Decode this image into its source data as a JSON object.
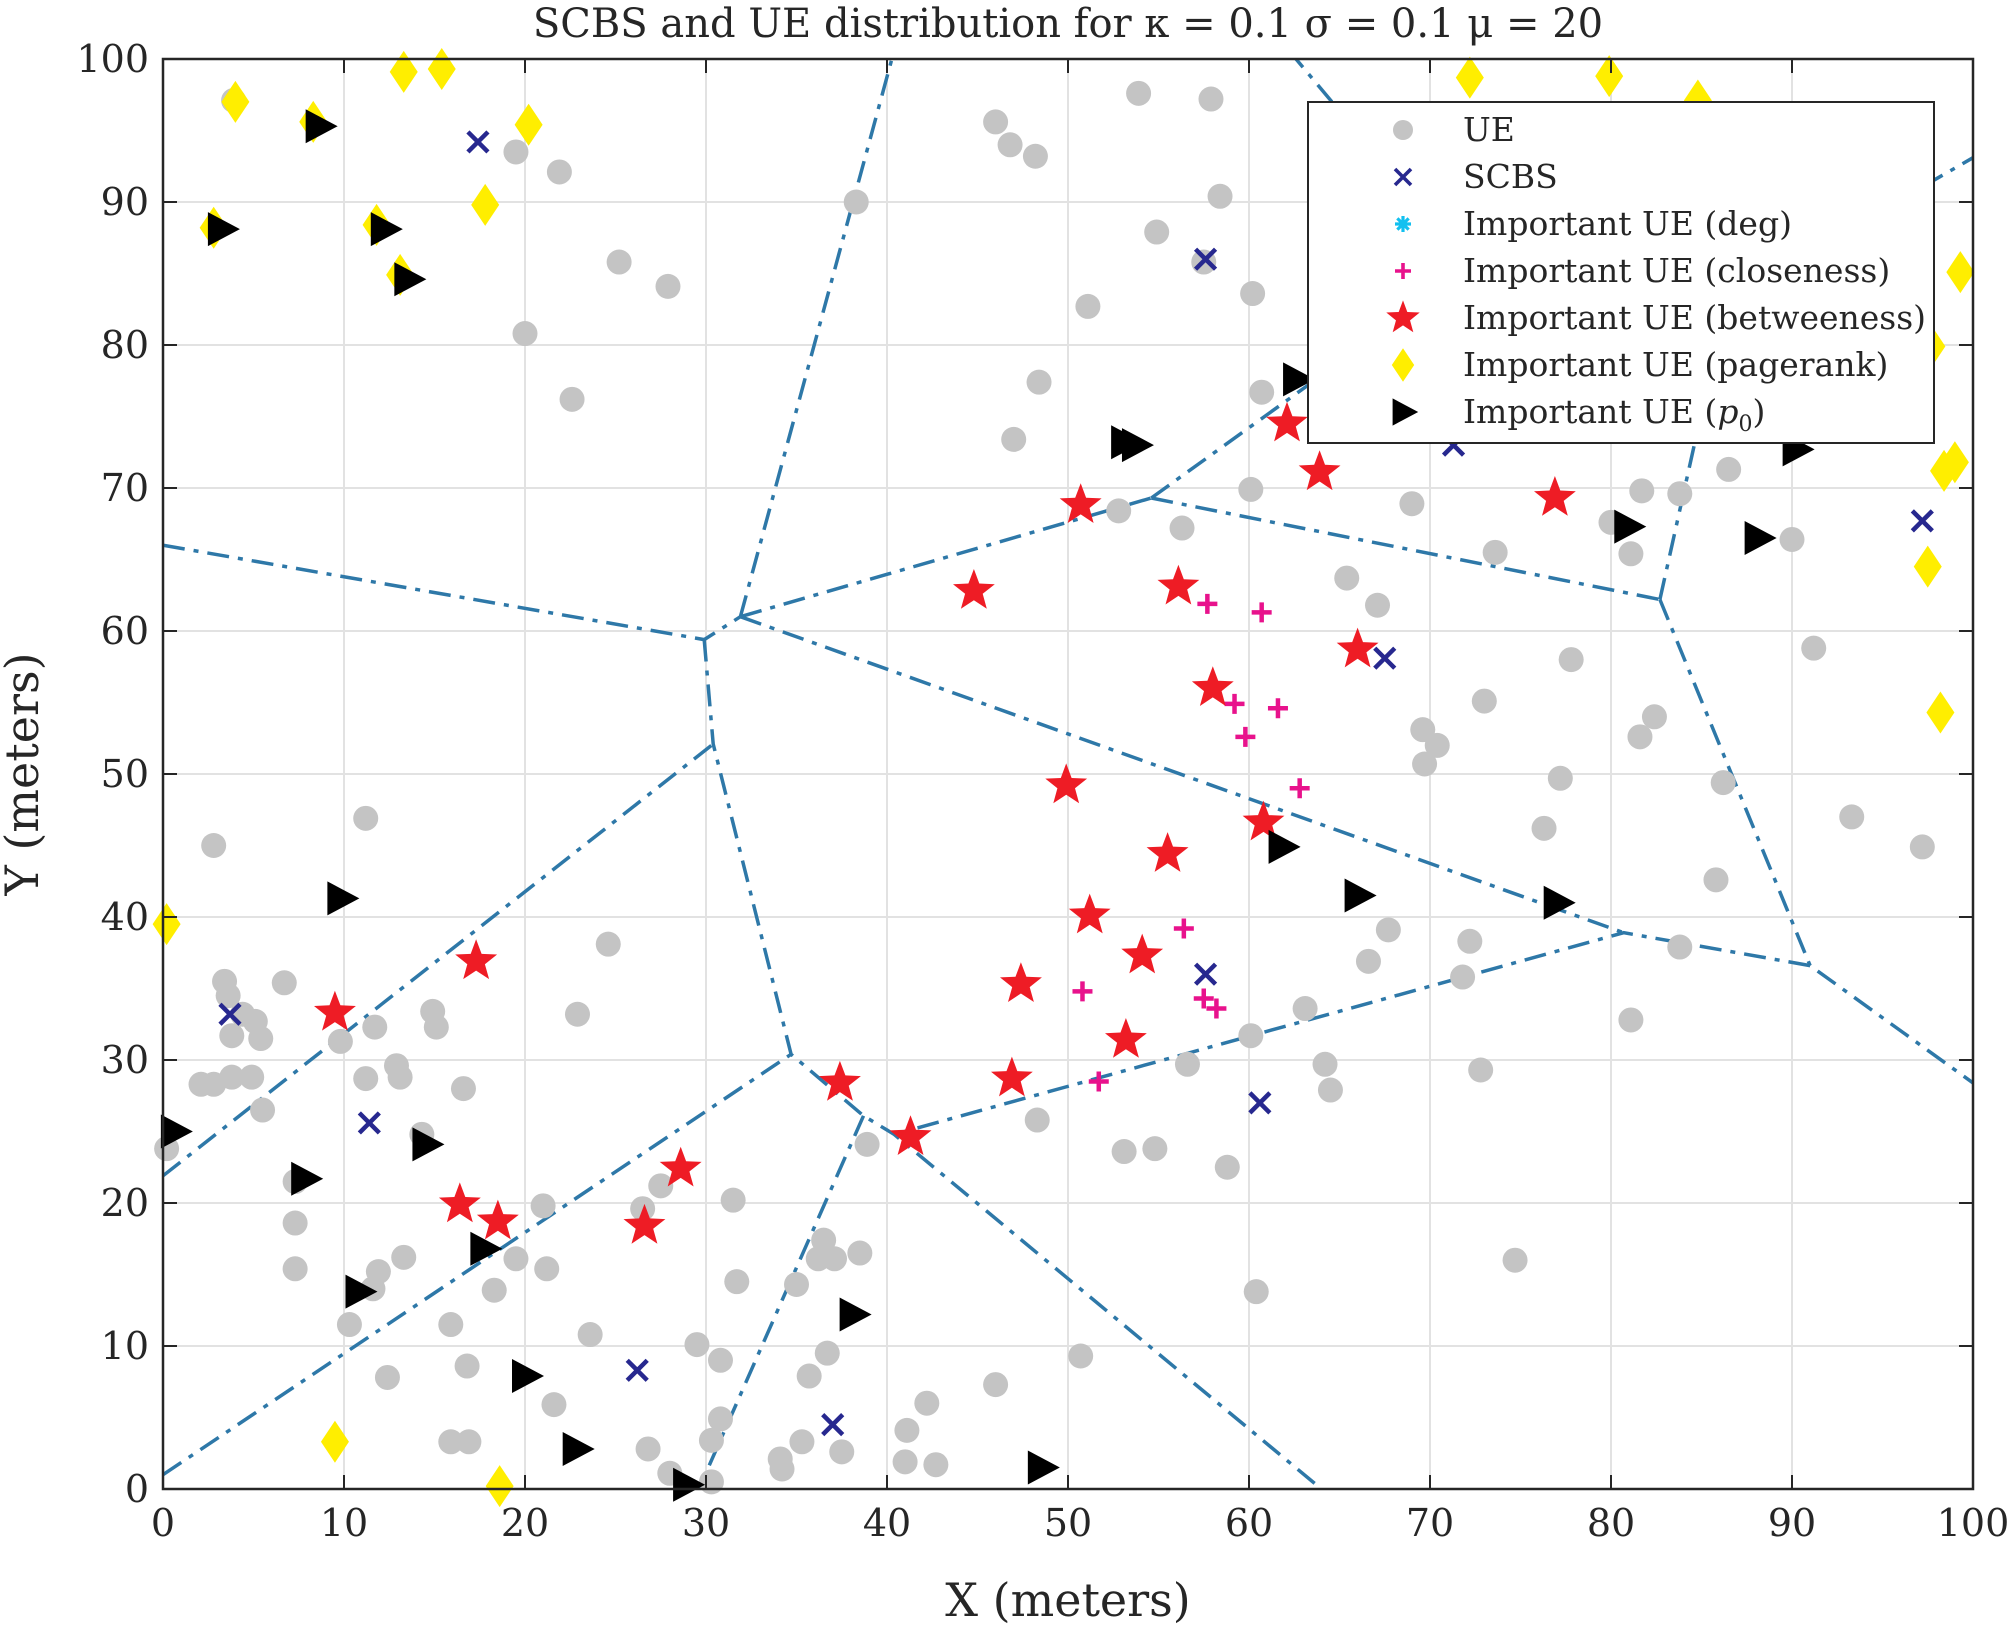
{
  "chart_data": {
    "type": "scatter",
    "title": "SCBS and UE distribution for κ = 0.1 σ = 0.1 μ = 20",
    "xlabel": "X (meters)",
    "ylabel": "Y (meters)",
    "xlim": [
      0,
      100
    ],
    "ylim": [
      0,
      100
    ],
    "xticks": [
      0,
      10,
      20,
      30,
      40,
      50,
      60,
      70,
      80,
      90,
      100
    ],
    "yticks": [
      0,
      10,
      20,
      30,
      40,
      50,
      60,
      70,
      80,
      90,
      100
    ],
    "grid": true,
    "legend_position": "top-right",
    "colors": {
      "ue": "#c4c4c4",
      "scbs": "#27288f",
      "deg": "#12c0f0",
      "closeness": "#e8128c",
      "betweeness": "#ee1c25",
      "pagerank": "#ffee00",
      "p0": "#000000",
      "voronoi": "#2e78a8",
      "grid": "#e2e2e2"
    },
    "series": [
      {
        "name": "UE",
        "marker": "circle",
        "points": [
          [
            3.9,
            97.1
          ],
          [
            19.5,
            93.5
          ],
          [
            21.9,
            92.1
          ],
          [
            25.2,
            85.8
          ],
          [
            27.9,
            84.1
          ],
          [
            20,
            80.8
          ],
          [
            22.6,
            76.2
          ],
          [
            38.3,
            90
          ],
          [
            46,
            95.6
          ],
          [
            46.8,
            94
          ],
          [
            48.2,
            93.2
          ],
          [
            57.9,
            97.2
          ],
          [
            53.9,
            97.6
          ],
          [
            58.4,
            90.4
          ],
          [
            54.9,
            87.9
          ],
          [
            57.5,
            85.8
          ],
          [
            60.2,
            83.6
          ],
          [
            51.1,
            82.7
          ],
          [
            48.4,
            77.4
          ],
          [
            60.7,
            76.7
          ],
          [
            47,
            73.4
          ],
          [
            52.8,
            68.4
          ],
          [
            56.3,
            67.2
          ],
          [
            60.1,
            69.9
          ],
          [
            69,
            68.9
          ],
          [
            73.6,
            65.5
          ],
          [
            65.4,
            63.7
          ],
          [
            67.1,
            61.8
          ],
          [
            77.8,
            58
          ],
          [
            73,
            55.1
          ],
          [
            69.6,
            53.1
          ],
          [
            70.4,
            52
          ],
          [
            69.7,
            50.7
          ],
          [
            76.3,
            46.2
          ],
          [
            77.2,
            49.7
          ],
          [
            80,
            67.6
          ],
          [
            81.1,
            65.4
          ],
          [
            81.7,
            69.8
          ],
          [
            83.8,
            69.6
          ],
          [
            86.5,
            71.3
          ],
          [
            91.2,
            58.8
          ],
          [
            90,
            66.4
          ],
          [
            81.6,
            52.6
          ],
          [
            82.4,
            54
          ],
          [
            86.2,
            49.4
          ],
          [
            85.8,
            42.6
          ],
          [
            93.3,
            47
          ],
          [
            97.2,
            44.9
          ],
          [
            83.8,
            37.9
          ],
          [
            81.1,
            32.8
          ],
          [
            72.2,
            38.3
          ],
          [
            71.8,
            35.8
          ],
          [
            72.8,
            29.3
          ],
          [
            67.7,
            39.1
          ],
          [
            66.6,
            36.9
          ],
          [
            63.1,
            33.6
          ],
          [
            64.2,
            29.7
          ],
          [
            64.5,
            27.9
          ],
          [
            56.6,
            29.7
          ],
          [
            60.1,
            31.7
          ],
          [
            58.8,
            22.5
          ],
          [
            48.3,
            25.8
          ],
          [
            53.1,
            23.6
          ],
          [
            54.8,
            23.8
          ],
          [
            74.7,
            16
          ],
          [
            60.4,
            13.8
          ],
          [
            50.7,
            9.3
          ],
          [
            46,
            7.3
          ],
          [
            42.2,
            6
          ],
          [
            41.1,
            4.1
          ],
          [
            41,
            1.9
          ],
          [
            42.7,
            1.7
          ],
          [
            2.8,
            45
          ],
          [
            11.2,
            46.9
          ],
          [
            3.4,
            35.5
          ],
          [
            3.6,
            34.5
          ],
          [
            4.4,
            33.2
          ],
          [
            5.1,
            32.7
          ],
          [
            5.4,
            31.5
          ],
          [
            3.8,
            31.7
          ],
          [
            2.1,
            28.3
          ],
          [
            2.8,
            28.3
          ],
          [
            3.8,
            28.8
          ],
          [
            4.9,
            28.8
          ],
          [
            5.5,
            26.5
          ],
          [
            0.2,
            23.8
          ],
          [
            6.7,
            35.4
          ],
          [
            9.8,
            31.3
          ],
          [
            11.7,
            32.3
          ],
          [
            11.2,
            28.7
          ],
          [
            12.9,
            29.6
          ],
          [
            13.1,
            28.8
          ],
          [
            14.9,
            33.4
          ],
          [
            15.1,
            32.3
          ],
          [
            14.3,
            24.8
          ],
          [
            16.6,
            28
          ],
          [
            22.9,
            33.2
          ],
          [
            24.6,
            38.1
          ],
          [
            7.3,
            21.5
          ],
          [
            7.3,
            18.6
          ],
          [
            7.3,
            15.4
          ],
          [
            10.3,
            11.5
          ],
          [
            11.6,
            14
          ],
          [
            11.9,
            15.2
          ],
          [
            12.4,
            7.8
          ],
          [
            13.3,
            16.2
          ],
          [
            15.9,
            11.5
          ],
          [
            15.9,
            3.3
          ],
          [
            16.8,
            8.6
          ],
          [
            16.9,
            3.3
          ],
          [
            18.3,
            13.9
          ],
          [
            19.5,
            16.1
          ],
          [
            21,
            19.8
          ],
          [
            21.2,
            15.4
          ],
          [
            21.6,
            5.9
          ],
          [
            23.6,
            10.8
          ],
          [
            26.5,
            19.6
          ],
          [
            26.8,
            2.8
          ],
          [
            27.5,
            21.2
          ],
          [
            28,
            1.1
          ],
          [
            29.5,
            10.1
          ],
          [
            30.3,
            0.5
          ],
          [
            30.3,
            3.4
          ],
          [
            30.8,
            9
          ],
          [
            31.5,
            20.2
          ],
          [
            31.7,
            14.5
          ],
          [
            34.1,
            2.1
          ],
          [
            34.2,
            1.4
          ],
          [
            35,
            14.3
          ],
          [
            35.3,
            3.3
          ],
          [
            35.7,
            7.9
          ],
          [
            36.2,
            16.1
          ],
          [
            36.5,
            17.4
          ],
          [
            36.7,
            9.5
          ],
          [
            37.1,
            16.1
          ],
          [
            37.5,
            2.6
          ],
          [
            38.5,
            16.5
          ],
          [
            38.9,
            24.1
          ],
          [
            30.8,
            4.9
          ]
        ]
      },
      {
        "name": "SCBS",
        "marker": "x",
        "points": [
          [
            17.4,
            94.2
          ],
          [
            57.6,
            86
          ],
          [
            71.3,
            73
          ],
          [
            67.5,
            58.1
          ],
          [
            97.2,
            67.7
          ],
          [
            3.7,
            33.2
          ],
          [
            11.4,
            25.6
          ],
          [
            26.2,
            8.3
          ],
          [
            37,
            4.5
          ],
          [
            57.6,
            36
          ],
          [
            60.6,
            27
          ]
        ]
      },
      {
        "name": "Important UE (deg)",
        "marker": "asterisk",
        "points": []
      },
      {
        "name": "Important UE (closeness)",
        "marker": "plus",
        "points": [
          [
            57.7,
            61.9
          ],
          [
            60.7,
            61.3
          ],
          [
            59.2,
            54.9
          ],
          [
            61.6,
            54.6
          ],
          [
            59.8,
            52.6
          ],
          [
            62.8,
            49
          ],
          [
            56.4,
            39.2
          ],
          [
            50.8,
            34.8
          ],
          [
            57.5,
            34.3
          ],
          [
            58.2,
            33.6
          ],
          [
            51.7,
            28.5
          ]
        ]
      },
      {
        "name": "Important UE (betweeness)",
        "marker": "star",
        "points": [
          [
            50.7,
            68.8
          ],
          [
            62.1,
            74.5
          ],
          [
            63.9,
            71.1
          ],
          [
            76.9,
            69.3
          ],
          [
            44.8,
            62.8
          ],
          [
            56.1,
            63.1
          ],
          [
            58,
            56
          ],
          [
            66,
            58.7
          ],
          [
            49.9,
            49.2
          ],
          [
            60.8,
            46.6
          ],
          [
            55.5,
            44.4
          ],
          [
            51.2,
            40.1
          ],
          [
            54.1,
            37.3
          ],
          [
            47.4,
            35.3
          ],
          [
            53.2,
            31.4
          ],
          [
            46.9,
            28.7
          ],
          [
            37.4,
            28.4
          ],
          [
            41.3,
            24.6
          ],
          [
            9.5,
            33.3
          ],
          [
            17.3,
            36.9
          ],
          [
            16.4,
            19.9
          ],
          [
            18.5,
            18.7
          ],
          [
            26.6,
            18.4
          ],
          [
            28.6,
            22.4
          ]
        ]
      },
      {
        "name": "Important UE (pagerank)",
        "marker": "diamond",
        "points": [
          [
            4,
            97
          ],
          [
            8.3,
            95.6
          ],
          [
            13.3,
            99.1
          ],
          [
            15.4,
            99.3
          ],
          [
            20.2,
            95.4
          ],
          [
            17.8,
            89.8
          ],
          [
            2.8,
            88.2
          ],
          [
            11.8,
            88.4
          ],
          [
            13.1,
            84.9
          ],
          [
            72.2,
            98.7
          ],
          [
            79.9,
            98.8
          ],
          [
            84.8,
            97.1
          ],
          [
            99.3,
            85.1
          ],
          [
            97.7,
            79.9
          ],
          [
            98.4,
            71.2
          ],
          [
            99,
            71.8
          ],
          [
            97.5,
            64.5
          ],
          [
            98.2,
            54.3
          ],
          [
            0.2,
            39.5
          ],
          [
            9.5,
            3.3
          ],
          [
            18.6,
            0.2
          ]
        ]
      },
      {
        "name": "Important UE (p0)",
        "marker": "triangle-right",
        "points": [
          [
            8.6,
            95.3
          ],
          [
            3.2,
            88.1
          ],
          [
            12.2,
            88.1
          ],
          [
            13.5,
            84.6
          ],
          [
            62.6,
            77.6
          ],
          [
            53.1,
            73.2
          ],
          [
            53.7,
            73
          ],
          [
            80.9,
            67.3
          ],
          [
            90.2,
            72.7
          ],
          [
            88.1,
            66.5
          ],
          [
            61.8,
            44.9
          ],
          [
            66,
            41.5
          ],
          [
            77,
            41
          ],
          [
            9.8,
            41.3
          ],
          [
            0.6,
            25
          ],
          [
            7.8,
            21.7
          ],
          [
            14.5,
            24.1
          ],
          [
            17.7,
            16.8
          ],
          [
            10.8,
            13.8
          ],
          [
            20,
            7.9
          ],
          [
            22.8,
            2.8
          ],
          [
            38.1,
            12.2
          ],
          [
            28.9,
            0.3
          ],
          [
            48.5,
            1.5
          ]
        ]
      }
    ],
    "voronoi_edges": [
      [
        [
          0,
          66
        ],
        [
          29.9,
          59.4
        ],
        [
          31.9,
          61
        ]
      ],
      [
        [
          29.9,
          59.4
        ],
        [
          30.4,
          52.1
        ],
        [
          34.7,
          30.4
        ],
        [
          38.7,
          26.1
        ],
        [
          40.4,
          24.8
        ],
        [
          64,
          0
        ]
      ],
      [
        [
          0,
          21.9
        ],
        [
          30.4,
          52.1
        ]
      ],
      [
        [
          31.9,
          61
        ],
        [
          54.6,
          69.3
        ]
      ],
      [
        [
          31.9,
          61
        ],
        [
          40.4,
          100.6
        ]
      ],
      [
        [
          31.9,
          61
        ],
        [
          80.7,
          38.9
        ]
      ],
      [
        [
          54.6,
          69.3
        ],
        [
          82.7,
          62.2
        ]
      ],
      [
        [
          54.6,
          69.3
        ],
        [
          66.9,
          80.5
        ]
      ],
      [
        [
          62.2,
          100.6
        ],
        [
          66.9,
          93.5
        ]
      ],
      [
        [
          82.7,
          62.2
        ],
        [
          85.9,
          80.4
        ]
      ],
      [
        [
          82.7,
          62.2
        ],
        [
          91,
          36.6
        ],
        [
          100,
          28.4
        ]
      ],
      [
        [
          91,
          36.6
        ],
        [
          80.7,
          38.9
        ],
        [
          40.4,
          24.8
        ]
      ],
      [
        [
          0,
          1
        ],
        [
          34.7,
          30.4
        ]
      ],
      [
        [
          38.7,
          26.1
        ],
        [
          29.6,
          0
        ]
      ],
      [
        [
          90.8,
          86.4
        ],
        [
          100,
          93.1
        ]
      ]
    ],
    "legend": [
      {
        "label": "UE",
        "marker": "circle"
      },
      {
        "label": "SCBS",
        "marker": "x"
      },
      {
        "label": "Important UE (deg)",
        "marker": "asterisk"
      },
      {
        "label": "Important UE (closeness)",
        "marker": "plus"
      },
      {
        "label": "Important UE (betweeness)",
        "marker": "star"
      },
      {
        "label": "Important UE (pagerank)",
        "marker": "diamond"
      },
      {
        "label": "Important UE (p0)",
        "marker": "triangle-right"
      }
    ]
  }
}
